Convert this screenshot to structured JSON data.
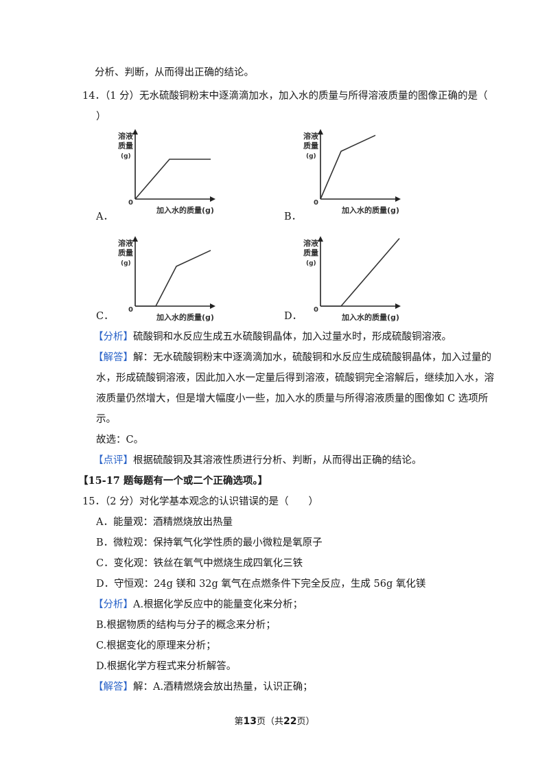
{
  "lines": {
    "l1": "分析、判断，从而得出正确的结论。",
    "q14_a": "14．（1 分）无水硫酸铜粉末中逐滴滴加水，加入水的质量与所得溶液质量的图像正确的是（",
    "q14_b": "）",
    "fx_tag": "【分析】",
    "fx_text": "硫酸铜和水反应生成五水硫酸铜晶体，加入过量水时，形成硫酸铜溶液。",
    "jd_tag": "【解答】",
    "jd_text": "解：无水硫酸铜粉末中逐滴滴加水，硫酸铜和水反应生成硫酸铜晶体，加入过量的",
    "jd2": "水，形成硫酸铜溶液，因此加入水一定量后得到溶液，硫酸铜完全溶解后，继续加入水，溶",
    "jd3": "液质量仍然增大，但是增大幅度小一些，加入水的质量与所得溶液质量的图像如 C 选项所",
    "jd4": "示。",
    "answer": "故选：C。",
    "dp_tag": "【点评】",
    "dp_text": "根据硫酸铜及其溶液性质进行分析、判断，从而得出正确的结论。",
    "section": "【15-17 题每题有一个或二个正确选项。】",
    "q15": "15．（2 分）对化学基本观念的认识错误的是（　　）",
    "q15A": "A．能量观：酒精燃烧放出热量",
    "q15B": "B．微粒观：保持氧气化学性质的最小微粒是氧原子",
    "q15C": "C．变化观：铁丝在氧气中燃烧生成四氧化三铁",
    "q15D": "D．守恒观：24g 镁和 32g 氧气在点燃条件下完全反应，生成 56g 氧化镁",
    "fx2_tag": "【分析】",
    "fx2_text": "A.根据化学反应中的能量变化来分析；",
    "fx2_b": "B.根据物质的结构与分子的概念来分析；",
    "fx2_c": "C.根据变化的原理来分析；",
    "fx2_d": "D.根据化学方程式来分析解答。",
    "jd2_tag": "【解答】",
    "jd2_text": "解：A.酒精燃烧会放出热量，认识正确；"
  },
  "charts": {
    "ylabel_1": "溶液",
    "ylabel_2": "质量",
    "ylabel_3": "(g)",
    "origin": "0",
    "xlabel": "加入水的质量(g)",
    "options": [
      "A．",
      "B．",
      "C．",
      "D．"
    ]
  },
  "chart_data": [
    {
      "type": "line",
      "name": "A",
      "x": [
        0,
        1.0,
        2.2
      ],
      "y": [
        0,
        1.0,
        1.0
      ],
      "xlabel": "加入水的质量(g)",
      "ylabel": "溶液质量(g)"
    },
    {
      "type": "line",
      "name": "B",
      "x": [
        0,
        0.6,
        1.6
      ],
      "y": [
        0,
        1.2,
        1.6
      ],
      "xlabel": "加入水的质量(g)",
      "ylabel": "溶液质量(g)"
    },
    {
      "type": "line",
      "name": "C",
      "x": [
        0,
        0.6,
        1.2,
        2.2
      ],
      "y": [
        0,
        0,
        1.0,
        1.4
      ],
      "xlabel": "加入水的质量(g)",
      "ylabel": "溶液质量(g)"
    },
    {
      "type": "line",
      "name": "D",
      "x": [
        0,
        0.6,
        2.3
      ],
      "y": [
        0,
        0,
        1.7
      ],
      "xlabel": "加入水的质量(g)",
      "ylabel": "溶液质量(g)"
    }
  ],
  "footer": {
    "pre": "第",
    "page": "13",
    "mid": "页（共",
    "total": "22",
    "post": "页）"
  }
}
